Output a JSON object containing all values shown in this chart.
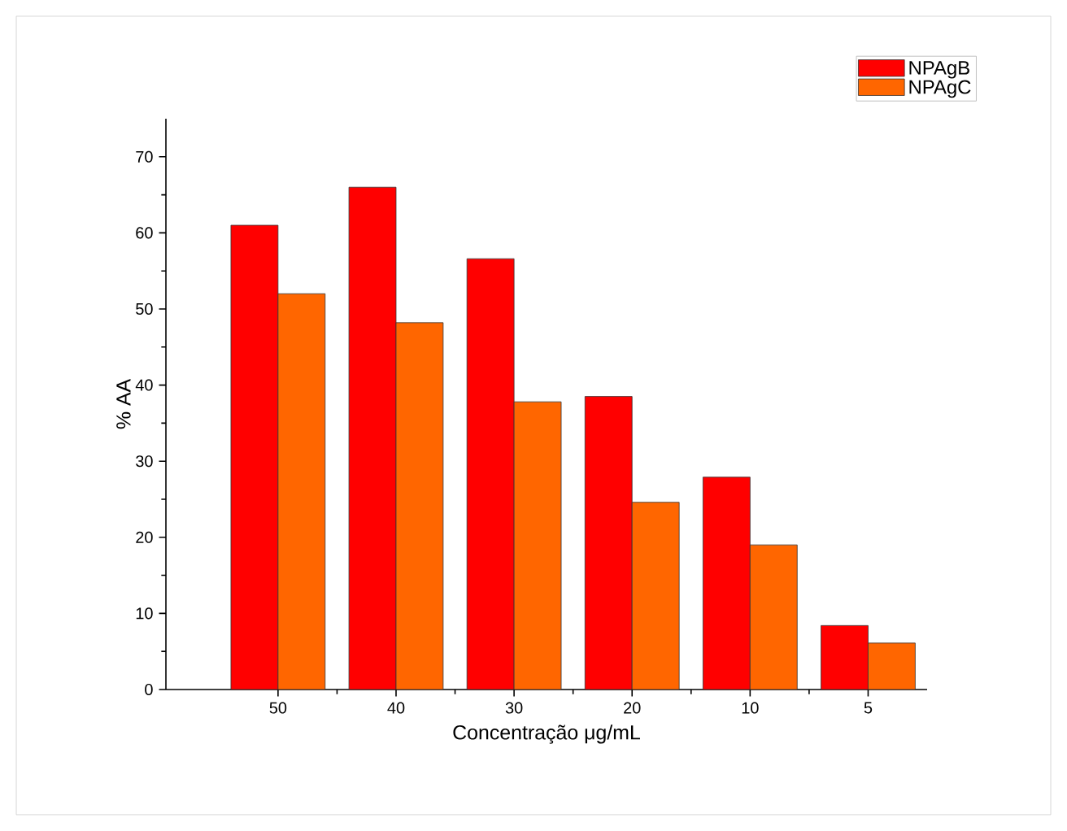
{
  "chart_data": {
    "type": "bar",
    "xlabel": "Concentração μg/mL",
    "ylabel": "% AA",
    "categories": [
      "50",
      "40",
      "30",
      "20",
      "10",
      "5"
    ],
    "series": [
      {
        "name": "NPAgB",
        "color": "#ff0000",
        "values": [
          61,
          66,
          56.6,
          38.5,
          27.9,
          8.4
        ]
      },
      {
        "name": "NPAgC",
        "color": "#ff6600",
        "values": [
          52,
          48.2,
          37.8,
          24.6,
          19,
          6.1
        ]
      }
    ],
    "ylim": [
      0,
      75
    ],
    "yticks": [
      0,
      10,
      20,
      30,
      40,
      50,
      60,
      70
    ],
    "legend": "top right"
  }
}
